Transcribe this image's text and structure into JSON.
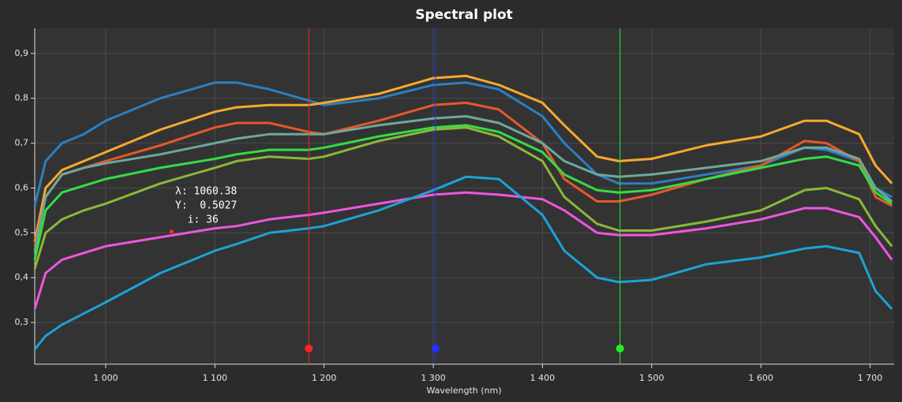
{
  "chart_data": {
    "type": "line",
    "title": "Spectral plot",
    "x_label": "Wavelength (nm)",
    "x": [
      935,
      945,
      960,
      980,
      1000,
      1050,
      1100,
      1120,
      1150,
      1186,
      1200,
      1250,
      1300,
      1330,
      1360,
      1400,
      1420,
      1450,
      1470,
      1500,
      1550,
      1600,
      1640,
      1660,
      1690,
      1705,
      1720
    ],
    "series": [
      {
        "color": "#2b7fc2",
        "values": [
          0.56,
          0.66,
          0.7,
          0.72,
          0.75,
          0.8,
          0.835,
          0.835,
          0.82,
          0.795,
          0.785,
          0.8,
          0.83,
          0.835,
          0.82,
          0.76,
          0.7,
          0.63,
          0.61,
          0.61,
          0.63,
          0.65,
          0.69,
          0.685,
          0.66,
          0.6,
          0.58
        ]
      },
      {
        "color": "#f7a92e",
        "values": [
          0.48,
          0.6,
          0.64,
          0.66,
          0.68,
          0.73,
          0.77,
          0.78,
          0.785,
          0.785,
          0.79,
          0.81,
          0.845,
          0.85,
          0.83,
          0.79,
          0.74,
          0.67,
          0.66,
          0.665,
          0.695,
          0.715,
          0.75,
          0.75,
          0.72,
          0.65,
          0.61
        ]
      },
      {
        "color": "#e8572a",
        "values": [
          0.47,
          0.58,
          0.63,
          0.645,
          0.66,
          0.695,
          0.735,
          0.745,
          0.745,
          0.725,
          0.72,
          0.75,
          0.785,
          0.79,
          0.775,
          0.7,
          0.62,
          0.57,
          0.57,
          0.585,
          0.62,
          0.65,
          0.705,
          0.7,
          0.66,
          0.58,
          0.56
        ]
      },
      {
        "color": "#6fa89a",
        "values": [
          0.46,
          0.58,
          0.63,
          0.645,
          0.655,
          0.675,
          0.7,
          0.71,
          0.72,
          0.72,
          0.72,
          0.74,
          0.755,
          0.76,
          0.745,
          0.7,
          0.66,
          0.63,
          0.625,
          0.63,
          0.645,
          0.66,
          0.69,
          0.69,
          0.665,
          0.6,
          0.57
        ]
      },
      {
        "color": "#33dd44",
        "values": [
          0.44,
          0.55,
          0.59,
          0.605,
          0.62,
          0.645,
          0.665,
          0.675,
          0.685,
          0.685,
          0.69,
          0.715,
          0.735,
          0.74,
          0.725,
          0.68,
          0.63,
          0.595,
          0.59,
          0.595,
          0.62,
          0.645,
          0.665,
          0.67,
          0.65,
          0.59,
          0.565
        ]
      },
      {
        "color": "#8ab83a",
        "values": [
          0.42,
          0.5,
          0.53,
          0.55,
          0.565,
          0.61,
          0.645,
          0.66,
          0.67,
          0.665,
          0.67,
          0.705,
          0.73,
          0.735,
          0.715,
          0.66,
          0.58,
          0.52,
          0.505,
          0.505,
          0.525,
          0.55,
          0.595,
          0.6,
          0.575,
          0.515,
          0.47
        ]
      },
      {
        "color": "#f055e0",
        "values": [
          0.33,
          0.41,
          0.44,
          0.455,
          0.47,
          0.49,
          0.51,
          0.515,
          0.53,
          0.54,
          0.545,
          0.565,
          0.585,
          0.59,
          0.585,
          0.575,
          0.55,
          0.5,
          0.495,
          0.495,
          0.51,
          0.53,
          0.555,
          0.555,
          0.535,
          0.49,
          0.44
        ]
      },
      {
        "color": "#1aa3d6",
        "values": [
          0.24,
          0.27,
          0.295,
          0.32,
          0.345,
          0.41,
          0.46,
          0.475,
          0.5,
          0.51,
          0.515,
          0.55,
          0.595,
          0.625,
          0.62,
          0.54,
          0.46,
          0.4,
          0.39,
          0.395,
          0.43,
          0.445,
          0.465,
          0.47,
          0.455,
          0.37,
          0.33
        ]
      }
    ],
    "xlim": [
      935,
      1722
    ],
    "ylim": [
      0.207,
      0.956
    ],
    "xticks": [
      {
        "value": 1000,
        "label": "1 000"
      },
      {
        "value": 1100,
        "label": "1 100"
      },
      {
        "value": 1200,
        "label": "1 200"
      },
      {
        "value": 1300,
        "label": "1 300"
      },
      {
        "value": 1400,
        "label": "1 400"
      },
      {
        "value": 1500,
        "label": "1 500"
      },
      {
        "value": 1600,
        "label": "1 600"
      },
      {
        "value": 1700,
        "label": "1 700"
      }
    ],
    "yticks": [
      {
        "value": 0.3,
        "label": "0,3"
      },
      {
        "value": 0.4,
        "label": "0,4"
      },
      {
        "value": 0.5,
        "label": "0,5"
      },
      {
        "value": 0.6,
        "label": "0,6"
      },
      {
        "value": 0.7,
        "label": "0,7"
      },
      {
        "value": 0.8,
        "label": "0,8"
      },
      {
        "value": 0.9,
        "label": "0,9"
      }
    ],
    "grid": true,
    "cursors": [
      {
        "x": 1186,
        "handle_y": 0.242,
        "color": "#ff2222"
      },
      {
        "x": 1302,
        "handle_y": 0.242,
        "color": "#2233ff"
      },
      {
        "x": 1471,
        "handle_y": 0.242,
        "color": "#22ee22"
      }
    ],
    "readout": {
      "x": 1060.38,
      "y": 0.5027,
      "color": "#ff3333",
      "lines": [
        "λ: 1060.38",
        "Y:  0.5027",
        "  i: 36"
      ]
    }
  }
}
